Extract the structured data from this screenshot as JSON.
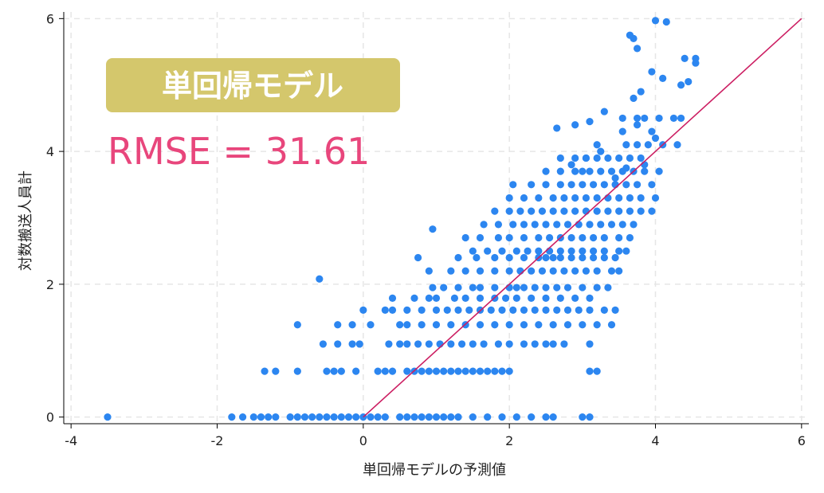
{
  "chart_data": {
    "type": "scatter",
    "xlabel": "単回帰モデルの予測値",
    "ylabel": "対数搬送人員計",
    "xlim": [
      -4.1,
      6.1
    ],
    "ylim": [
      -0.1,
      6.1
    ],
    "xticks": [
      -4,
      -2,
      0,
      2,
      4,
      6
    ],
    "xtick_labels": [
      "-4",
      "-2",
      "0",
      "2",
      "4",
      "6"
    ],
    "yticks": [
      0,
      2,
      4,
      6
    ],
    "ytick_labels": [
      "0",
      "2",
      "4",
      "6"
    ],
    "grid": true,
    "point_color": "#2c86f0",
    "line_color": "#cc1e62",
    "reference_line": {
      "x": [
        0,
        6
      ],
      "y": [
        0,
        6
      ]
    },
    "annotations": {
      "badge": "単回帰モデル",
      "rmse": "RMSE = 31.61",
      "badge_color": "#d4c76c",
      "rmse_color": "#e8467c"
    },
    "series": [
      {
        "x": [
          -3.5,
          -1.8,
          -1.65,
          -1.5,
          -1.4,
          -1.3,
          -1.2,
          -1.0,
          -0.9,
          -0.8,
          -0.7,
          -0.6,
          -0.5,
          -0.4,
          -0.3,
          -0.2,
          -0.1,
          0.0,
          0.1,
          0.2,
          0.3,
          0.5,
          0.6,
          0.7,
          0.8,
          0.9,
          1.0,
          1.1,
          1.2,
          1.3,
          1.5,
          1.7,
          1.9,
          2.1,
          2.3,
          2.5,
          2.6,
          3.0,
          3.1,
          -1.35,
          -1.2,
          -0.9,
          -0.5,
          -0.4,
          -0.3,
          -0.1,
          0.2,
          0.3,
          0.4,
          0.6,
          0.7,
          0.8,
          0.9,
          1.0,
          1.1,
          1.2,
          1.3,
          1.4,
          1.5,
          1.6,
          1.7,
          1.8,
          1.9,
          2.0,
          3.1,
          3.2,
          -0.55,
          -0.35,
          -0.15,
          -0.05,
          0.35,
          0.5,
          0.6,
          0.75,
          0.9,
          1.05,
          1.2,
          1.35,
          1.5,
          1.65,
          1.85,
          2.0,
          2.2,
          2.35,
          2.5,
          2.6,
          2.75,
          3.1,
          -0.9,
          -0.35,
          -0.15,
          0.1,
          0.5,
          0.6,
          0.8,
          1.0,
          1.2,
          1.4,
          1.6,
          1.8,
          2.0,
          2.2,
          2.4,
          2.6,
          2.8,
          3.0,
          3.2,
          3.4,
          0.0,
          0.3,
          0.4,
          0.6,
          0.8,
          1.0,
          1.15,
          1.3,
          1.45,
          1.6,
          1.75,
          1.9,
          2.05,
          2.2,
          2.35,
          2.5,
          2.65,
          2.8,
          2.95,
          3.1,
          3.3,
          3.45,
          0.4,
          0.7,
          0.9,
          1.0,
          1.25,
          1.4,
          1.6,
          1.8,
          1.95,
          2.1,
          2.3,
          2.5,
          2.7,
          2.9,
          3.1,
          -0.6,
          0.95,
          1.1,
          1.3,
          1.5,
          1.6,
          1.8,
          2.0,
          2.1,
          2.2,
          2.35,
          2.5,
          2.65,
          2.8,
          3.0,
          3.2,
          3.35,
          0.9,
          1.2,
          1.4,
          1.6,
          1.8,
          2.0,
          2.15,
          2.3,
          2.45,
          2.6,
          2.75,
          2.9,
          3.05,
          3.2,
          3.4,
          3.5,
          0.75,
          1.3,
          1.55,
          1.8,
          2.0,
          2.2,
          2.4,
          2.5,
          2.6,
          2.7,
          2.85,
          3.0,
          3.15,
          3.3,
          3.45,
          1.5,
          1.7,
          1.9,
          2.1,
          2.25,
          2.4,
          2.55,
          2.7,
          2.85,
          3.0,
          3.15,
          3.3,
          3.5,
          3.6,
          0.95,
          1.4,
          1.6,
          1.85,
          2.0,
          2.2,
          2.4,
          2.55,
          2.7,
          2.85,
          3.0,
          3.15,
          3.3,
          3.5,
          3.65,
          1.65,
          1.85,
          2.05,
          2.2,
          2.35,
          2.5,
          2.65,
          2.8,
          2.95,
          3.1,
          3.25,
          3.4,
          3.55,
          3.7,
          1.8,
          2.0,
          2.15,
          2.3,
          2.45,
          2.6,
          2.75,
          2.9,
          3.05,
          3.2,
          3.35,
          3.5,
          3.65,
          3.8,
          3.95,
          2.0,
          2.2,
          2.4,
          2.6,
          2.75,
          2.9,
          3.05,
          3.2,
          3.35,
          3.5,
          3.65,
          3.8,
          4.0,
          2.05,
          2.3,
          2.5,
          2.7,
          2.85,
          3.0,
          3.15,
          3.3,
          3.45,
          3.6,
          3.75,
          3.95,
          2.5,
          2.7,
          2.9,
          3.0,
          3.1,
          3.25,
          3.4,
          3.55,
          3.7,
          3.85,
          4.05,
          2.7,
          2.9,
          3.05,
          3.2,
          3.35,
          3.5,
          3.65,
          3.8,
          3.2,
          3.6,
          3.75,
          3.9,
          4.1,
          4.3,
          3.55,
          3.75,
          3.85,
          4.05,
          4.25,
          4.35,
          3.65,
          3.7,
          3.75,
          4.0,
          4.15,
          4.4,
          4.55,
          4.55,
          3.7,
          3.8,
          3.95,
          4.1,
          4.35,
          4.45,
          2.65,
          2.9,
          3.1,
          3.3,
          3.55,
          3.75,
          3.95,
          4.0,
          2.85,
          3.05,
          3.25,
          3.45,
          3.6,
          3.85
        ],
        "y": [
          0.0,
          0.0,
          0.0,
          0.0,
          0.0,
          0.0,
          0.0,
          0.0,
          0.0,
          0.0,
          0.0,
          0.0,
          0.0,
          0.0,
          0.0,
          0.0,
          0.0,
          0.0,
          0.0,
          0.0,
          0.0,
          0.0,
          0.0,
          0.0,
          0.0,
          0.0,
          0.0,
          0.0,
          0.0,
          0.0,
          0.0,
          0.0,
          0.0,
          0.0,
          0.0,
          0.0,
          0.0,
          0.0,
          0.0,
          0.69,
          0.69,
          0.69,
          0.69,
          0.69,
          0.69,
          0.69,
          0.69,
          0.69,
          0.69,
          0.69,
          0.69,
          0.69,
          0.69,
          0.69,
          0.69,
          0.69,
          0.69,
          0.69,
          0.69,
          0.69,
          0.69,
          0.69,
          0.69,
          0.69,
          0.69,
          0.69,
          1.1,
          1.1,
          1.1,
          1.1,
          1.1,
          1.1,
          1.1,
          1.1,
          1.1,
          1.1,
          1.1,
          1.1,
          1.1,
          1.1,
          1.1,
          1.1,
          1.1,
          1.1,
          1.1,
          1.1,
          1.1,
          1.1,
          1.39,
          1.39,
          1.39,
          1.39,
          1.39,
          1.39,
          1.39,
          1.39,
          1.39,
          1.39,
          1.39,
          1.39,
          1.39,
          1.39,
          1.39,
          1.39,
          1.39,
          1.39,
          1.39,
          1.39,
          1.61,
          1.61,
          1.61,
          1.61,
          1.61,
          1.61,
          1.61,
          1.61,
          1.61,
          1.61,
          1.61,
          1.61,
          1.61,
          1.61,
          1.61,
          1.61,
          1.61,
          1.61,
          1.61,
          1.61,
          1.61,
          1.61,
          1.79,
          1.79,
          1.79,
          1.79,
          1.79,
          1.79,
          1.79,
          1.79,
          1.79,
          1.79,
          1.79,
          1.79,
          1.79,
          1.79,
          1.79,
          2.08,
          1.95,
          1.95,
          1.95,
          1.95,
          1.95,
          1.95,
          1.95,
          1.95,
          1.95,
          1.95,
          1.95,
          1.95,
          1.95,
          1.95,
          1.95,
          1.95,
          2.2,
          2.2,
          2.2,
          2.2,
          2.2,
          2.2,
          2.2,
          2.2,
          2.2,
          2.2,
          2.2,
          2.2,
          2.2,
          2.2,
          2.2,
          2.2,
          2.4,
          2.4,
          2.4,
          2.4,
          2.4,
          2.4,
          2.4,
          2.4,
          2.4,
          2.4,
          2.4,
          2.4,
          2.4,
          2.4,
          2.4,
          2.5,
          2.5,
          2.5,
          2.5,
          2.5,
          2.5,
          2.5,
          2.5,
          2.5,
          2.5,
          2.5,
          2.5,
          2.5,
          2.5,
          2.83,
          2.7,
          2.7,
          2.7,
          2.7,
          2.7,
          2.7,
          2.7,
          2.7,
          2.7,
          2.7,
          2.7,
          2.7,
          2.7,
          2.7,
          2.9,
          2.9,
          2.9,
          2.9,
          2.9,
          2.9,
          2.9,
          2.9,
          2.9,
          2.9,
          2.9,
          2.9,
          2.9,
          2.9,
          3.1,
          3.1,
          3.1,
          3.1,
          3.1,
          3.1,
          3.1,
          3.1,
          3.1,
          3.1,
          3.1,
          3.1,
          3.1,
          3.1,
          3.1,
          3.3,
          3.3,
          3.3,
          3.3,
          3.3,
          3.3,
          3.3,
          3.3,
          3.3,
          3.3,
          3.3,
          3.3,
          3.3,
          3.5,
          3.5,
          3.5,
          3.5,
          3.5,
          3.5,
          3.5,
          3.5,
          3.5,
          3.5,
          3.5,
          3.5,
          3.7,
          3.7,
          3.7,
          3.7,
          3.7,
          3.7,
          3.7,
          3.7,
          3.7,
          3.7,
          3.7,
          3.9,
          3.9,
          3.9,
          3.9,
          3.9,
          3.9,
          3.9,
          3.9,
          4.1,
          4.1,
          4.1,
          4.1,
          4.1,
          4.1,
          4.3,
          4.5,
          4.5,
          4.5,
          4.5,
          4.5,
          5.75,
          5.7,
          5.55,
          5.97,
          5.95,
          5.4,
          5.4,
          5.33,
          4.8,
          4.9,
          5.2,
          5.1,
          5.0,
          5.05,
          4.35,
          4.4,
          4.45,
          4.6,
          4.5,
          4.4,
          4.3,
          4.2,
          3.8,
          3.9,
          4.0,
          3.6,
          3.75,
          3.8
        ]
      }
    ]
  }
}
